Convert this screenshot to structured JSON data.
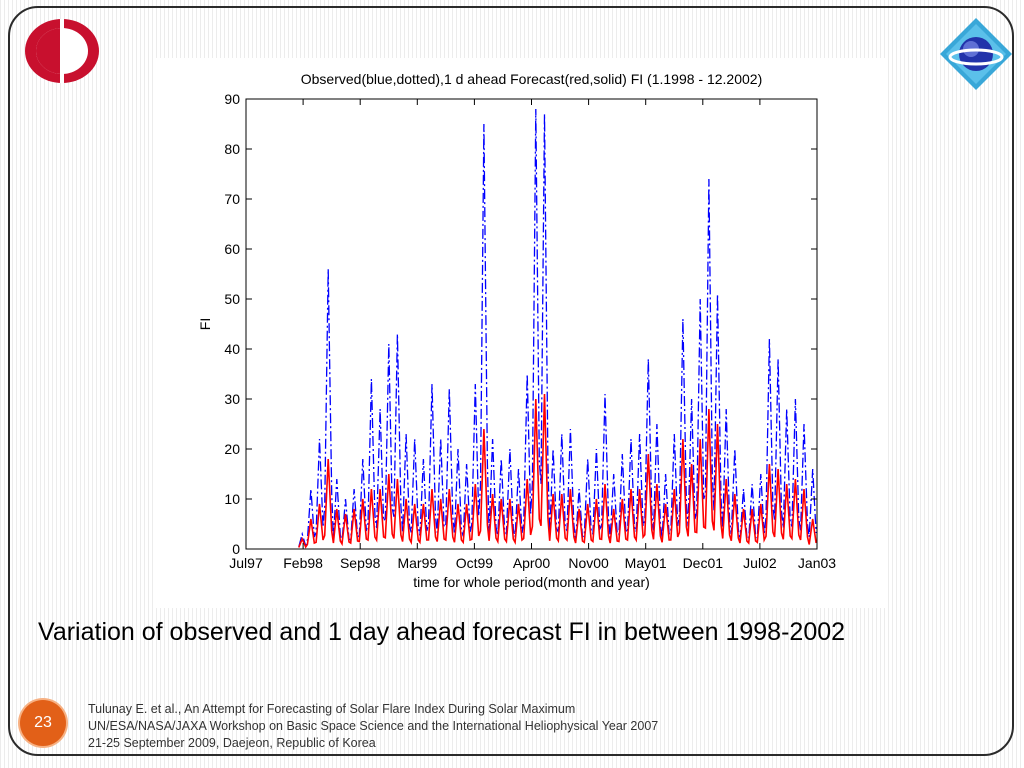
{
  "slide": {
    "caption": "Variation of observed and 1 day ahead forecast FI in between 1998-2002",
    "page_number": "23",
    "footer": [
      "Tulunay E. et al., An Attempt for Forecasting of Solar Flare Index During Solar Maximum",
      "UN/ESA/NASA/JAXA Workshop on Basic Space Science and the International Heliophysical Year 2007",
      "21-25 September 2009, Daejeon, Republic of Korea"
    ],
    "accent_color": "#e26018",
    "logos": [
      "university-logo-icon",
      "workshop-globe-logo-icon"
    ]
  },
  "chart_data": {
    "type": "line",
    "title": "Observed(blue,dotted),1 d ahead Forecast(red,solid) FI (1.1998 - 12.2002)",
    "xlabel": "time for whole period(month and year)",
    "ylabel": "FI",
    "ylim": [
      0,
      90
    ],
    "yticks": [
      "0",
      "10",
      "20",
      "30",
      "40",
      "50",
      "60",
      "70",
      "80",
      "90"
    ],
    "x_tick_labels": [
      "Jul97",
      "Feb98",
      "Sep98",
      "Mar99",
      "Oct99",
      "Apr00",
      "Nov00",
      "May01",
      "Dec01",
      "Jul02",
      "Jan03"
    ],
    "x_range": [
      "1997-07",
      "2003-01"
    ],
    "grid": false,
    "legend": "none",
    "series": [
      {
        "color": "#0000ff",
        "style": "dotted",
        "x": [
          "1998-01",
          "1998-02",
          "1998-03",
          "1998-04",
          "1998-05",
          "1998-06",
          "1998-07",
          "1998-08",
          "1998-09",
          "1998-10",
          "1998-11",
          "1998-12",
          "1999-01",
          "1999-02",
          "1999-03",
          "1999-04",
          "1999-05",
          "1999-06",
          "1999-07",
          "1999-08",
          "1999-09",
          "1999-10",
          "1999-11",
          "1999-12",
          "2000-01",
          "2000-02",
          "2000-03",
          "2000-04",
          "2000-05",
          "2000-06",
          "2000-07",
          "2000-08",
          "2000-09",
          "2000-10",
          "2000-11",
          "2000-12",
          "2001-01",
          "2001-02",
          "2001-03",
          "2001-04",
          "2001-05",
          "2001-06",
          "2001-07",
          "2001-08",
          "2001-09",
          "2001-10",
          "2001-11",
          "2001-12",
          "2002-01",
          "2002-02",
          "2002-03",
          "2002-04",
          "2002-05",
          "2002-06",
          "2002-07",
          "2002-08",
          "2002-09",
          "2002-10",
          "2002-11",
          "2002-12"
        ],
        "values": [
          3,
          12,
          22,
          56,
          14,
          10,
          12,
          18,
          34,
          28,
          41,
          43,
          23,
          22,
          18,
          33,
          22,
          32,
          20,
          17,
          33,
          85,
          22,
          18,
          20,
          16,
          35,
          88,
          87,
          20,
          23,
          24,
          12,
          18,
          20,
          31,
          15,
          19,
          22,
          23,
          38,
          25,
          15,
          23,
          46,
          30,
          50,
          74,
          51,
          28,
          20,
          12,
          13,
          15,
          42,
          38,
          28,
          30,
          25,
          16
        ]
      },
      {
        "color": "#ff0000",
        "style": "solid",
        "x": [
          "1998-01",
          "1998-02",
          "1998-03",
          "1998-04",
          "1998-05",
          "1998-06",
          "1998-07",
          "1998-08",
          "1998-09",
          "1998-10",
          "1998-11",
          "1998-12",
          "1999-01",
          "1999-02",
          "1999-03",
          "1999-04",
          "1999-05",
          "1999-06",
          "1999-07",
          "1999-08",
          "1999-09",
          "1999-10",
          "1999-11",
          "1999-12",
          "2000-01",
          "2000-02",
          "2000-03",
          "2000-04",
          "2000-05",
          "2000-06",
          "2000-07",
          "2000-08",
          "2000-09",
          "2000-10",
          "2000-11",
          "2000-12",
          "2001-01",
          "2001-02",
          "2001-03",
          "2001-04",
          "2001-05",
          "2001-06",
          "2001-07",
          "2001-08",
          "2001-09",
          "2001-10",
          "2001-11",
          "2001-12",
          "2002-01",
          "2002-02",
          "2002-03",
          "2002-04",
          "2002-05",
          "2002-06",
          "2002-07",
          "2002-08",
          "2002-09",
          "2002-10",
          "2002-11",
          "2002-12"
        ],
        "values": [
          2,
          6,
          9,
          18,
          8,
          7,
          8,
          10,
          12,
          12,
          15,
          14,
          10,
          9,
          9,
          12,
          10,
          12,
          9,
          9,
          13,
          24,
          11,
          10,
          10,
          9,
          14,
          30,
          31,
          11,
          11,
          12,
          8,
          9,
          10,
          13,
          8,
          10,
          12,
          12,
          19,
          13,
          9,
          12,
          22,
          17,
          22,
          28,
          25,
          14,
          11,
          8,
          8,
          9,
          17,
          16,
          13,
          14,
          12,
          6
        ]
      }
    ]
  }
}
